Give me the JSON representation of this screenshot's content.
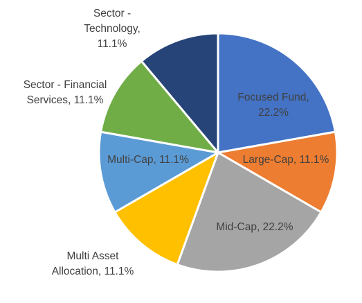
{
  "chart_data": {
    "type": "pie",
    "title": "",
    "start_angle_deg": 0,
    "direction": "clockwise",
    "legend": "none",
    "slices": [
      {
        "label": "Focused Fund",
        "value": 22.2,
        "value_label": "22.2%",
        "color": "#4472C4"
      },
      {
        "label": "Large-Cap",
        "value": 11.1,
        "value_label": "11.1%",
        "color": "#ED7D31"
      },
      {
        "label": "Mid-Cap",
        "value": 22.2,
        "value_label": "22.2%",
        "color": "#A5A5A5"
      },
      {
        "label": "Multi Asset Allocation",
        "value": 11.1,
        "value_label": "11.1%",
        "color": "#FFC000"
      },
      {
        "label": "Multi-Cap",
        "value": 11.1,
        "value_label": "11.1%",
        "color": "#5B9BD5"
      },
      {
        "label": "Sector - Financial Services",
        "value": 11.1,
        "value_label": "11.1%",
        "color": "#70AD47"
      },
      {
        "label": "Sector - Technology",
        "value": 11.1,
        "value_label": "11.1%",
        "color": "#264478"
      }
    ],
    "data_labels": [
      [
        "Focused Fund,",
        "22.2%"
      ],
      [
        "Large-Cap, 11.1%"
      ],
      [
        "Mid-Cap, 22.2%"
      ],
      [
        "Multi Asset",
        "Allocation, 11.1%"
      ],
      [
        "Multi-Cap, 11.1%"
      ],
      [
        "Sector - Financial",
        "Services, 11.1%"
      ],
      [
        "Sector -",
        "Technology,",
        "11.1%"
      ]
    ]
  }
}
